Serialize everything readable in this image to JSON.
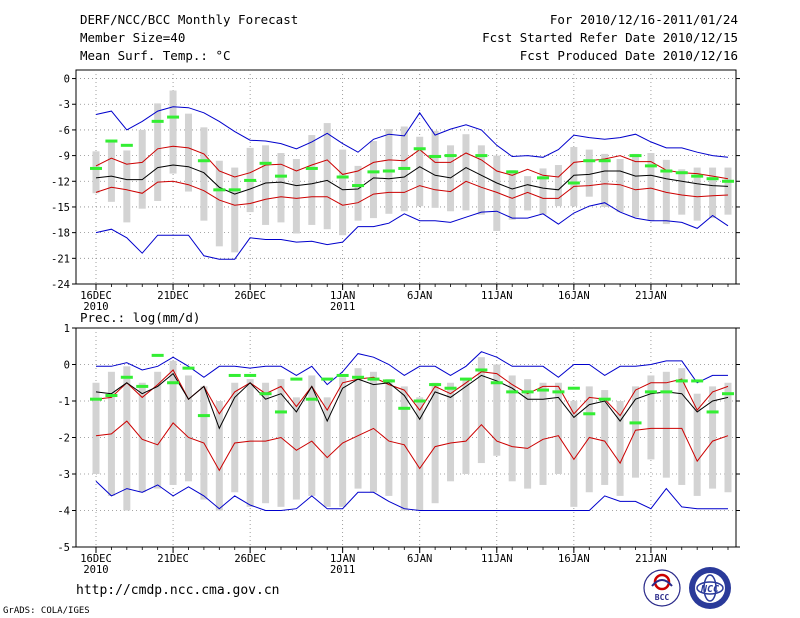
{
  "header": {
    "title": "DERF/NCC/BCC Monthly Forecast",
    "member_size": "Member Size=40",
    "variable": "Mean Surf. Temp.: °C",
    "period": "For 2010/12/16-2011/01/24",
    "fcst_started": "Fcst Started Refer Date 2010/12/15",
    "fcst_produced": "Fcst Produced Date 2010/12/16"
  },
  "footer": {
    "url": "http://cmdp.ncc.cma.gov.cn",
    "credit": "GrADS: COLA/IGES",
    "logo_bcc": "BCC",
    "logo_ncc": "NCC"
  },
  "colors": {
    "ensemble_mean": "#000000",
    "spread_bounds": "#cc0000",
    "extremes": "#0000cc",
    "members_bar": "#d3d3d3",
    "markers": "#33ee33"
  },
  "chart_data": [
    {
      "type": "line",
      "title": "Mean Surf. Temp.: °C",
      "ylim": [
        -24,
        1
      ],
      "yticks": [
        0,
        -3,
        -6,
        -9,
        -12,
        -15,
        -18,
        -21,
        -24
      ],
      "xlabels": [
        {
          "day": 0,
          "label": "16DEC",
          "sub": "2010"
        },
        {
          "day": 5,
          "label": "21DEC",
          "sub": ""
        },
        {
          "day": 10,
          "label": "26DEC",
          "sub": ""
        },
        {
          "day": 16,
          "label": "1JAN",
          "sub": "2011"
        },
        {
          "day": 21,
          "label": "6JAN",
          "sub": ""
        },
        {
          "day": 26,
          "label": "11JAN",
          "sub": ""
        },
        {
          "day": 31,
          "label": "16JAN",
          "sub": ""
        },
        {
          "day": 36,
          "label": "21JAN",
          "sub": ""
        }
      ],
      "series": [
        {
          "name": "max",
          "values": [
            -4.2,
            -3.8,
            -6.0,
            -5.0,
            -3.8,
            -3.3,
            -3.4,
            -4.0,
            -5.0,
            -6.2,
            -7.2,
            -7.3,
            -7.6,
            -8.2,
            -7.4,
            -6.4,
            -7.6,
            -8.6,
            -7.1,
            -6.5,
            -6.7,
            -4.0,
            -6.6,
            -5.9,
            -5.4,
            -6.0,
            -7.8,
            -9.1,
            -9.0,
            -9.2,
            -8.3,
            -6.6,
            -6.9,
            -7.1,
            -6.9,
            -6.5,
            -7.4,
            -8.1,
            -8.1,
            -8.6,
            -9.0,
            -9.2
          ]
        },
        {
          "name": "upper",
          "values": [
            -10.2,
            -9.3,
            -10.0,
            -9.8,
            -8.2,
            -7.9,
            -8.1,
            -8.8,
            -10.8,
            -11.5,
            -11.0,
            -10.1,
            -10.0,
            -10.8,
            -10.1,
            -9.5,
            -11.2,
            -10.8,
            -9.8,
            -9.5,
            -9.6,
            -8.3,
            -9.8,
            -9.8,
            -8.7,
            -9.5,
            -10.8,
            -11.3,
            -10.6,
            -11.3,
            -11.5,
            -9.8,
            -9.6,
            -9.4,
            -9.0,
            -9.7,
            -9.7,
            -10.7,
            -11.0,
            -11.1,
            -11.4,
            -11.7
          ]
        },
        {
          "name": "mean",
          "values": [
            -11.6,
            -11.4,
            -11.8,
            -11.8,
            -10.4,
            -10.1,
            -10.3,
            -11.0,
            -12.7,
            -13.5,
            -12.9,
            -12.2,
            -12.1,
            -12.5,
            -12.3,
            -11.9,
            -13.0,
            -12.9,
            -11.6,
            -11.7,
            -11.5,
            -10.3,
            -11.3,
            -11.6,
            -10.4,
            -11.3,
            -12.2,
            -12.9,
            -12.4,
            -12.8,
            -13.0,
            -11.3,
            -11.2,
            -10.8,
            -10.8,
            -11.4,
            -11.3,
            -11.7,
            -12.0,
            -12.3,
            -12.5,
            -12.6
          ]
        },
        {
          "name": "lower",
          "values": [
            -13.3,
            -12.7,
            -13.0,
            -13.4,
            -12.1,
            -12.0,
            -12.4,
            -13.1,
            -14.2,
            -14.8,
            -14.6,
            -14.1,
            -13.8,
            -14.0,
            -13.8,
            -13.8,
            -14.8,
            -14.5,
            -13.5,
            -13.3,
            -13.3,
            -12.5,
            -13.0,
            -13.2,
            -12.0,
            -12.7,
            -13.3,
            -14.0,
            -13.3,
            -14.0,
            -14.0,
            -12.6,
            -12.5,
            -12.3,
            -12.4,
            -13.0,
            -12.8,
            -13.3,
            -13.6,
            -13.8,
            -13.7,
            -13.6
          ]
        },
        {
          "name": "min",
          "values": [
            -18.0,
            -17.6,
            -18.6,
            -20.4,
            -18.3,
            -18.3,
            -18.3,
            -20.7,
            -21.1,
            -21.1,
            -18.6,
            -18.8,
            -18.8,
            -19.1,
            -19.0,
            -19.4,
            -19.1,
            -17.3,
            -17.3,
            -16.9,
            -15.8,
            -16.6,
            -16.6,
            -16.8,
            -16.2,
            -15.6,
            -15.5,
            -16.3,
            -16.3,
            -15.8,
            -17.0,
            -15.7,
            -14.9,
            -14.5,
            -15.6,
            -16.3,
            -16.6,
            -16.6,
            -16.8,
            -17.5,
            -16.0,
            -17.2
          ]
        }
      ],
      "members_range": {
        "top": [
          -8.5,
          -7.2,
          -8.4,
          -6.0,
          -2.9,
          -1.4,
          -4.1,
          -5.7,
          -9.6,
          -10.4,
          -8.1,
          -7.8,
          -8.7,
          -9.4,
          -6.6,
          -5.2,
          -8.3,
          -10.2,
          -7.3,
          -5.9,
          -5.6,
          -6.8,
          -6.1,
          -7.8,
          -6.5,
          -7.8,
          -9.0,
          -10.7,
          -11.4,
          -10.5,
          -10.1,
          -8.0,
          -8.3,
          -8.8,
          -9.4,
          -8.8,
          -8.7,
          -9.5,
          -10.6,
          -10.4,
          -10.4,
          -10.4
        ],
        "bottom": [
          -13.4,
          -14.4,
          -16.8,
          -15.2,
          -14.3,
          -11.1,
          -13.2,
          -16.6,
          -19.6,
          -20.3,
          -15.6,
          -17.1,
          -16.8,
          -18.1,
          -17.1,
          -17.6,
          -18.3,
          -16.6,
          -16.3,
          -15.8,
          -15.5,
          -14.9,
          -15.1,
          -15.5,
          -15.4,
          -15.9,
          -17.8,
          -16.5,
          -15.4,
          -15.9,
          -14.9,
          -14.9,
          -13.8,
          -15.0,
          -15.6,
          -16.2,
          -16.6,
          -17.0,
          -15.9,
          -16.6,
          -16.3,
          -15.9
        ]
      },
      "markers": {
        "days": [
          0,
          1,
          2,
          4,
          5,
          7,
          8,
          9,
          10,
          11,
          12,
          14,
          16,
          17,
          18,
          19,
          20,
          21,
          22,
          23,
          25,
          27,
          29,
          31,
          32,
          33,
          35,
          36,
          37,
          38,
          39,
          40,
          41
        ],
        "values": [
          -10.5,
          -7.3,
          -7.8,
          -5.0,
          -4.5,
          -9.6,
          -13.0,
          -13.0,
          -11.9,
          -9.9,
          -11.4,
          -10.5,
          -11.5,
          -12.5,
          -10.9,
          -10.8,
          -10.5,
          -8.2,
          -9.1,
          -9.0,
          -9.0,
          -10.9,
          -11.6,
          -12.2,
          -9.6,
          -9.6,
          -9.0,
          -10.2,
          -10.8,
          -11.0,
          -11.4,
          -11.7,
          -12.0
        ]
      }
    },
    {
      "type": "line",
      "title": "Prec.: log(mm/d)",
      "ylim": [
        -5,
        1
      ],
      "yticks": [
        1,
        0,
        -1,
        -2,
        -3,
        -4,
        -5
      ],
      "xlabels": [
        {
          "day": 0,
          "label": "16DEC",
          "sub": "2010"
        },
        {
          "day": 5,
          "label": "21DEC",
          "sub": ""
        },
        {
          "day": 10,
          "label": "26DEC",
          "sub": ""
        },
        {
          "day": 16,
          "label": "1JAN",
          "sub": "2011"
        },
        {
          "day": 21,
          "label": "6JAN",
          "sub": ""
        },
        {
          "day": 26,
          "label": "11JAN",
          "sub": ""
        },
        {
          "day": 31,
          "label": "16JAN",
          "sub": ""
        },
        {
          "day": 36,
          "label": "21JAN",
          "sub": ""
        }
      ],
      "series": [
        {
          "name": "max",
          "values": [
            -0.05,
            -0.05,
            0.05,
            -0.15,
            -0.05,
            0.2,
            -0.05,
            -0.35,
            -0.05,
            -0.05,
            -0.1,
            -0.05,
            -0.05,
            -0.3,
            -0.05,
            -0.55,
            -0.2,
            0.3,
            0.2,
            0.0,
            -0.3,
            -0.05,
            -0.05,
            -0.3,
            -0.05,
            0.35,
            0.2,
            -0.05,
            -0.05,
            -0.05,
            -0.35,
            0.0,
            0.0,
            -0.3,
            -0.05,
            -0.05,
            0.0,
            0.1,
            0.1,
            -0.5,
            -0.3,
            -0.3
          ]
        },
        {
          "name": "upper",
          "values": [
            -0.95,
            -0.9,
            -0.5,
            -0.9,
            -0.55,
            -0.15,
            -0.95,
            -0.6,
            -1.35,
            -0.75,
            -0.5,
            -0.8,
            -0.6,
            -1.15,
            -0.6,
            -1.25,
            -0.5,
            -0.4,
            -0.35,
            -0.55,
            -0.7,
            -1.25,
            -0.6,
            -0.8,
            -0.5,
            -0.2,
            -0.25,
            -0.55,
            -0.8,
            -0.6,
            -0.6,
            -1.35,
            -0.9,
            -0.95,
            -1.4,
            -0.7,
            -0.5,
            -0.5,
            -0.4,
            -1.25,
            -0.75,
            -0.6
          ]
        },
        {
          "name": "mean",
          "values": [
            -0.75,
            -0.8,
            -0.5,
            -0.8,
            -0.6,
            -0.25,
            -0.95,
            -0.6,
            -1.75,
            -0.9,
            -0.5,
            -0.95,
            -0.8,
            -1.3,
            -0.6,
            -1.55,
            -0.65,
            -0.4,
            -0.55,
            -0.5,
            -0.85,
            -1.5,
            -0.75,
            -0.9,
            -0.6,
            -0.3,
            -0.45,
            -0.65,
            -0.95,
            -0.95,
            -0.9,
            -1.45,
            -1.1,
            -1.0,
            -1.55,
            -0.95,
            -0.8,
            -0.75,
            -0.8,
            -1.3,
            -1.0,
            -0.9
          ]
        },
        {
          "name": "lower",
          "values": [
            -1.95,
            -1.9,
            -1.55,
            -2.05,
            -2.2,
            -1.6,
            -2.0,
            -2.15,
            -2.9,
            -2.15,
            -2.1,
            -2.1,
            -2.0,
            -2.35,
            -2.1,
            -2.55,
            -2.15,
            -1.95,
            -1.75,
            -2.1,
            -2.2,
            -2.85,
            -2.25,
            -2.15,
            -2.1,
            -1.65,
            -2.1,
            -2.25,
            -2.3,
            -2.05,
            -1.95,
            -2.6,
            -2.0,
            -2.1,
            -2.7,
            -1.8,
            -1.75,
            -1.75,
            -1.75,
            -2.65,
            -2.1,
            -1.95
          ]
        },
        {
          "name": "min",
          "values": [
            -3.2,
            -3.6,
            -3.4,
            -3.5,
            -3.3,
            -3.6,
            -3.35,
            -3.6,
            -3.95,
            -3.6,
            -3.85,
            -4.0,
            -4.0,
            -3.95,
            -3.6,
            -3.95,
            -3.95,
            -3.5,
            -3.5,
            -3.75,
            -3.95,
            -4.0,
            -4.0,
            -4.0,
            -4.0,
            -4.0,
            -4.0,
            -4.0,
            -4.0,
            -4.0,
            -4.0,
            -4.0,
            -4.0,
            -3.6,
            -3.75,
            -3.75,
            -3.95,
            -3.4,
            -3.9,
            -3.95,
            -3.95,
            -3.95
          ]
        }
      ],
      "members_range": {
        "top": [
          -0.5,
          -0.2,
          -0.05,
          -0.5,
          -0.2,
          0.1,
          -0.3,
          -0.6,
          -1.0,
          -0.5,
          -0.4,
          -0.5,
          -0.4,
          -0.9,
          -0.3,
          -0.9,
          -0.35,
          -0.1,
          -0.2,
          -0.4,
          -0.6,
          -0.9,
          -0.5,
          -0.5,
          -0.4,
          0.2,
          0.0,
          -0.3,
          -0.4,
          -0.5,
          -0.5,
          -1.0,
          -0.6,
          -0.7,
          -1.0,
          -0.6,
          -0.3,
          -0.2,
          -0.1,
          -0.8,
          -0.6,
          -0.5
        ],
        "bottom": [
          -3.0,
          -3.6,
          -4.0,
          -3.5,
          -3.4,
          -3.3,
          -3.2,
          -3.7,
          -4.0,
          -3.5,
          -3.9,
          -3.8,
          -3.9,
          -3.7,
          -3.6,
          -3.9,
          -3.9,
          -3.4,
          -3.5,
          -3.6,
          -4.0,
          -4.0,
          -3.8,
          -3.2,
          -3.0,
          -2.7,
          -2.5,
          -3.2,
          -3.4,
          -3.3,
          -3.0,
          -3.9,
          -3.5,
          -3.3,
          -3.6,
          -3.1,
          -2.6,
          -3.1,
          -3.3,
          -3.6,
          -3.4,
          -3.5
        ]
      },
      "markers": {
        "days": [
          0,
          1,
          2,
          3,
          4,
          5,
          6,
          7,
          9,
          10,
          11,
          12,
          13,
          14,
          15,
          16,
          17,
          18,
          19,
          20,
          21,
          22,
          23,
          24,
          25,
          26,
          27,
          28,
          29,
          30,
          31,
          32,
          33,
          35,
          36,
          37,
          38,
          39,
          40,
          41
        ],
        "values": [
          -0.95,
          -0.85,
          -0.35,
          -0.6,
          0.25,
          -0.5,
          -0.1,
          -1.4,
          -0.3,
          -0.3,
          -0.8,
          -1.3,
          -0.4,
          -0.95,
          -0.4,
          -0.3,
          -0.35,
          -0.4,
          -0.45,
          -1.2,
          -1.0,
          -0.55,
          -0.65,
          -0.4,
          -0.15,
          -0.5,
          -0.75,
          -0.75,
          -0.7,
          -0.75,
          -0.65,
          -1.35,
          -0.95,
          -1.6,
          -0.75,
          -0.75,
          -0.45,
          -0.45,
          -1.3,
          -0.8
        ]
      }
    }
  ]
}
